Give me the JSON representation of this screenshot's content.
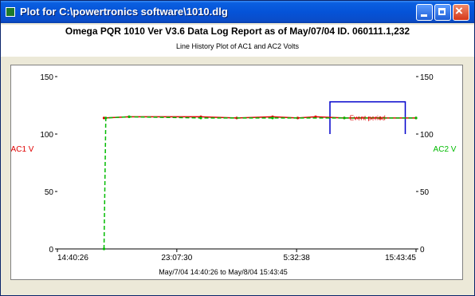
{
  "window": {
    "title": "Plot for C:\\powertronics software\\1010.dlg",
    "app_icon": "plot-app-icon",
    "controls": [
      "minimize-icon",
      "maximize-icon",
      "close-icon"
    ]
  },
  "header": {
    "line1": "Omega PQR 1010 Ver V3.6   Data Log Report as of May/07/04   ID. 060111.1,232",
    "line2": "Line History Plot of AC1 and AC2 Volts"
  },
  "chart_data": {
    "type": "line",
    "title": "Line History Plot of AC1 and AC2 Volts",
    "xlabel": "May/7/04 14:40:26 to May/8/04 15:43:45",
    "ylabel_left": "AC1 V",
    "ylabel_right": "AC2 V",
    "ylim": [
      0,
      150
    ],
    "y_ticks": [
      0,
      50,
      100,
      150
    ],
    "y_tick_labels": [
      "0",
      "50",
      "100",
      "150"
    ],
    "x_ticks": [
      0,
      0.333,
      0.667,
      1.0
    ],
    "x_tick_labels": [
      "14:40:26",
      "23:07:30",
      "5:32:38",
      "15:43:45"
    ],
    "series": [
      {
        "name": "AC1",
        "color": "#e00000",
        "x": [
          0.13,
          0.2,
          0.4,
          0.5,
          0.6,
          0.67,
          0.72,
          0.8,
          0.9,
          1.0
        ],
        "y": [
          114,
          115,
          115,
          114,
          115,
          114,
          115,
          114,
          114,
          114
        ]
      },
      {
        "name": "AC2",
        "color": "#00bb00",
        "x": [
          0.13,
          0.135,
          0.2,
          0.4,
          0.6,
          0.8,
          1.0
        ],
        "y": [
          0,
          114,
          115,
          114,
          114,
          114,
          114
        ]
      }
    ],
    "annotation_box": {
      "x_range": [
        0.76,
        0.97
      ],
      "y_range": [
        100,
        128
      ],
      "color": "#0000cc",
      "text": "Event period"
    },
    "grid": false,
    "colors": {
      "ac1": "#e00000",
      "ac2": "#00bb00",
      "event_box": "#0000cc"
    }
  }
}
